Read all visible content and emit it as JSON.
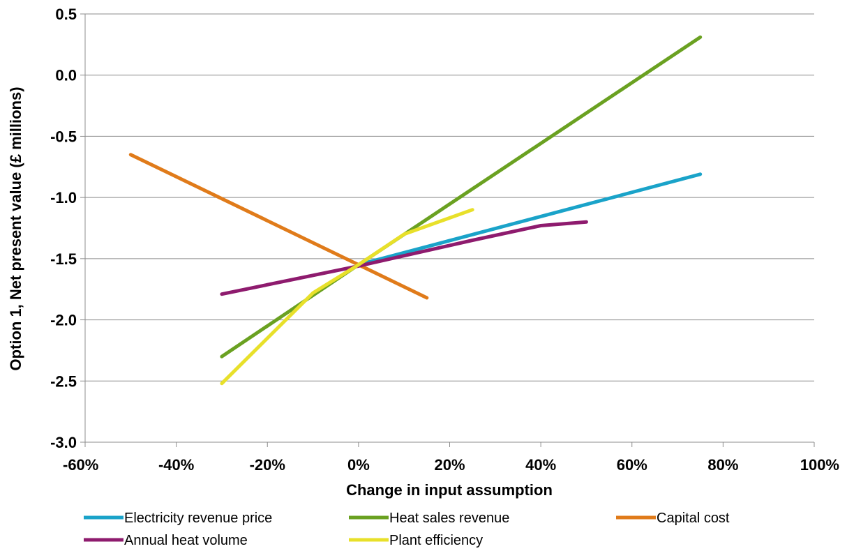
{
  "chart_data": {
    "type": "line",
    "xlabel": "Change in input assumption",
    "ylabel": "Option 1, Net present value (£ millions)",
    "xlim": [
      -60,
      100
    ],
    "ylim": [
      -3.0,
      0.5
    ],
    "x_ticks": [
      -60,
      -40,
      -20,
      0,
      20,
      40,
      60,
      80,
      100
    ],
    "x_tick_labels": [
      "-60%",
      "-40%",
      "-20%",
      "0%",
      "20%",
      "40%",
      "60%",
      "80%",
      "100%"
    ],
    "y_ticks": [
      0.5,
      0.0,
      -0.5,
      -1.0,
      -1.5,
      -2.0,
      -2.5,
      -3.0
    ],
    "y_tick_labels": [
      "0.5",
      "0.0",
      "-0.5",
      "-1.0",
      "-1.5",
      "-2.0",
      "-2.5",
      "-3.0"
    ],
    "grid": "horizontal",
    "legend_position": "bottom",
    "series": [
      {
        "name": "Electricity revenue price",
        "color": "#1aa3c9",
        "x": [
          0,
          75
        ],
        "y": [
          -1.55,
          -0.81
        ]
      },
      {
        "name": "Heat sales revenue",
        "color": "#6aa121",
        "x": [
          -30,
          0,
          75
        ],
        "y": [
          -2.3,
          -1.55,
          0.31
        ]
      },
      {
        "name": "Capital cost",
        "color": "#e07b1a",
        "x": [
          -50,
          0,
          15
        ],
        "y": [
          -0.65,
          -1.55,
          -1.82
        ]
      },
      {
        "name": "Annual heat volume",
        "color": "#8e1b6e",
        "x": [
          -30,
          0,
          25,
          40,
          50
        ],
        "y": [
          -1.79,
          -1.56,
          -1.35,
          -1.23,
          -1.2
        ]
      },
      {
        "name": "Plant efficiency",
        "color": "#e8e02a",
        "x": [
          -30,
          -10,
          0,
          10,
          25
        ],
        "y": [
          -2.52,
          -1.78,
          -1.55,
          -1.3,
          -1.1
        ]
      }
    ]
  }
}
